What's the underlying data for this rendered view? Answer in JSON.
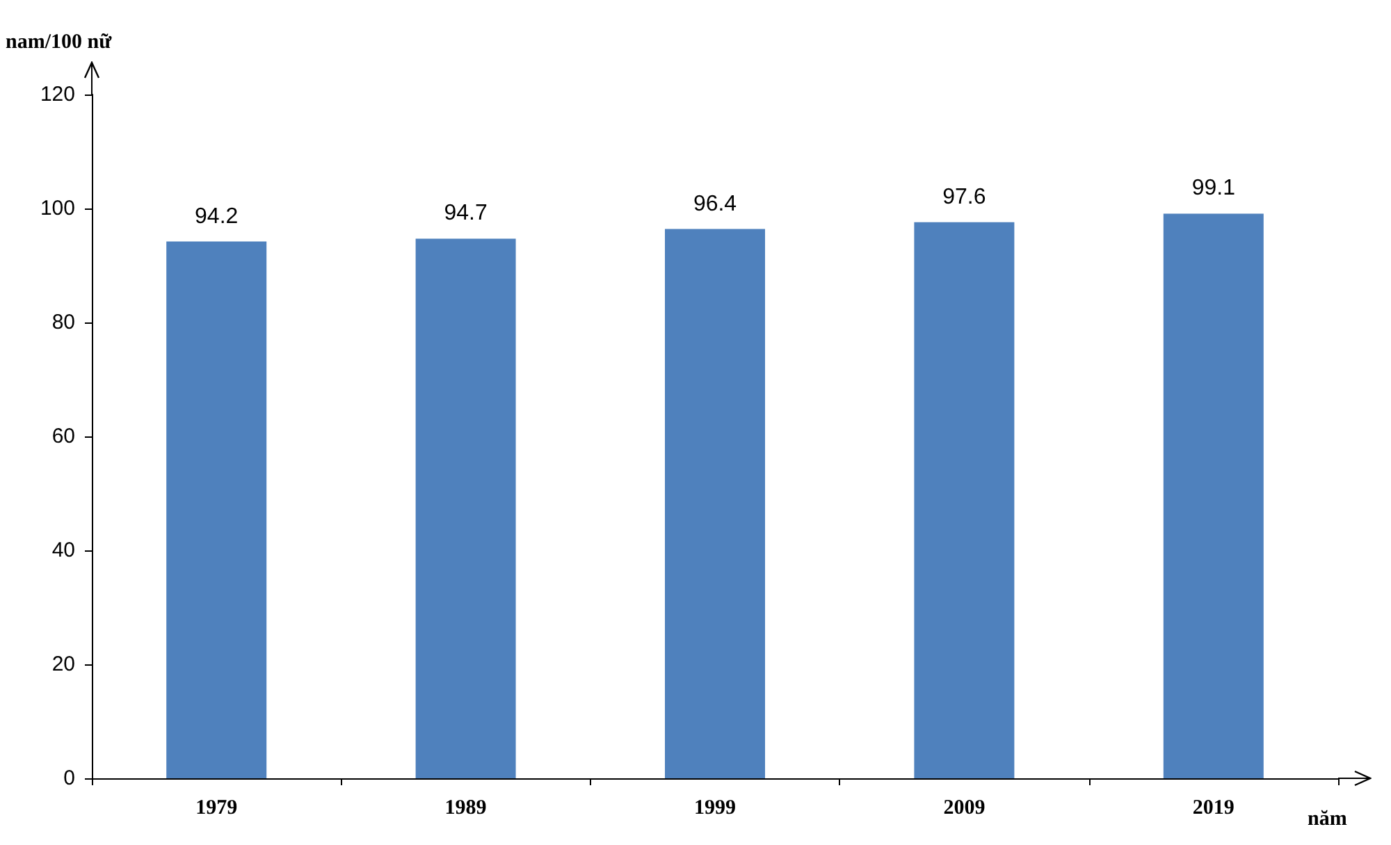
{
  "chart_data": {
    "type": "bar",
    "ylabel": "nam/100 nữ",
    "xlabel": "năm",
    "categories": [
      "1979",
      "1989",
      "1999",
      "2009",
      "2019"
    ],
    "values": [
      94.2,
      94.7,
      96.4,
      97.6,
      99.1
    ],
    "color": "#4f81bd",
    "ylim": [
      0,
      120
    ],
    "yticks": [
      0,
      20,
      40,
      60,
      80,
      100,
      120
    ],
    "grid": false,
    "data_labels": true
  }
}
